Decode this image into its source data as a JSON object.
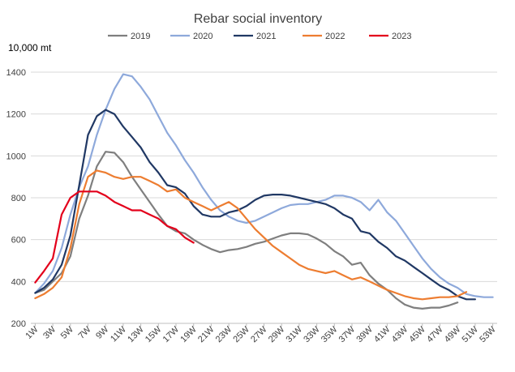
{
  "chart_data": {
    "type": "line",
    "title": "Rebar social inventory",
    "unit_label": "10,000  mt",
    "xlabel": "",
    "ylabel": "",
    "ylim": [
      200,
      1400
    ],
    "yticks": [
      "200",
      "400",
      "600",
      "800",
      "1000",
      "1200",
      "1400"
    ],
    "xticks": [
      "1W",
      "3W",
      "5W",
      "7W",
      "9W",
      "11W",
      "13W",
      "15W",
      "17W",
      "19W",
      "21W",
      "23W",
      "25W",
      "27W",
      "29W",
      "31W",
      "33W",
      "35W",
      "37W",
      "39W",
      "41W",
      "43W",
      "45W",
      "47W",
      "49W",
      "51W",
      "53W"
    ],
    "grid": "horizontal",
    "legend_position": "top",
    "series": [
      {
        "name": "2019",
        "color": "#7f7f7f",
        "start_week": 1,
        "values": [
          345,
          360,
          400,
          440,
          520,
          700,
          810,
          950,
          1020,
          1015,
          970,
          900,
          840,
          780,
          720,
          665,
          640,
          630,
          600,
          575,
          555,
          540,
          550,
          555,
          565,
          580,
          590,
          605,
          620,
          630,
          630,
          625,
          605,
          580,
          545,
          520,
          480,
          490,
          430,
          390,
          360,
          320,
          290,
          275,
          270,
          275,
          275,
          285,
          300
        ]
      },
      {
        "name": "2020",
        "color": "#8ea9db",
        "start_week": 1,
        "values": [
          345,
          390,
          450,
          560,
          720,
          850,
          950,
          1100,
          1220,
          1320,
          1390,
          1380,
          1330,
          1270,
          1190,
          1110,
          1050,
          980,
          920,
          850,
          790,
          740,
          710,
          690,
          680,
          690,
          710,
          730,
          750,
          765,
          770,
          770,
          780,
          790,
          810,
          810,
          800,
          780,
          740,
          790,
          730,
          690,
          630,
          570,
          510,
          460,
          420,
          390,
          370,
          340,
          330,
          325,
          325
        ]
      },
      {
        "name": "2021",
        "color": "#203864",
        "start_week": 1,
        "values": [
          345,
          370,
          410,
          480,
          620,
          860,
          1100,
          1190,
          1220,
          1200,
          1140,
          1090,
          1040,
          970,
          920,
          860,
          850,
          820,
          760,
          720,
          710,
          710,
          730,
          740,
          760,
          790,
          810,
          815,
          815,
          810,
          800,
          790,
          780,
          770,
          750,
          720,
          700,
          640,
          630,
          590,
          560,
          520,
          500,
          470,
          440,
          410,
          380,
          360,
          330,
          315,
          315
        ]
      },
      {
        "name": "2022",
        "color": "#ed7d31",
        "start_week": 1,
        "values": [
          320,
          340,
          370,
          420,
          560,
          770,
          900,
          930,
          920,
          900,
          890,
          900,
          900,
          880,
          860,
          830,
          840,
          800,
          780,
          760,
          740,
          760,
          780,
          750,
          700,
          650,
          610,
          570,
          540,
          510,
          480,
          460,
          450,
          440,
          450,
          430,
          410,
          420,
          400,
          380,
          360,
          345,
          330,
          320,
          315,
          320,
          325,
          325,
          330,
          350
        ]
      },
      {
        "name": "2023",
        "color": "#e3001b",
        "start_week": 1,
        "values": [
          395,
          450,
          510,
          720,
          800,
          830,
          830,
          830,
          810,
          780,
          760,
          740,
          740,
          720,
          700,
          665,
          650,
          610,
          585
        ]
      }
    ]
  }
}
